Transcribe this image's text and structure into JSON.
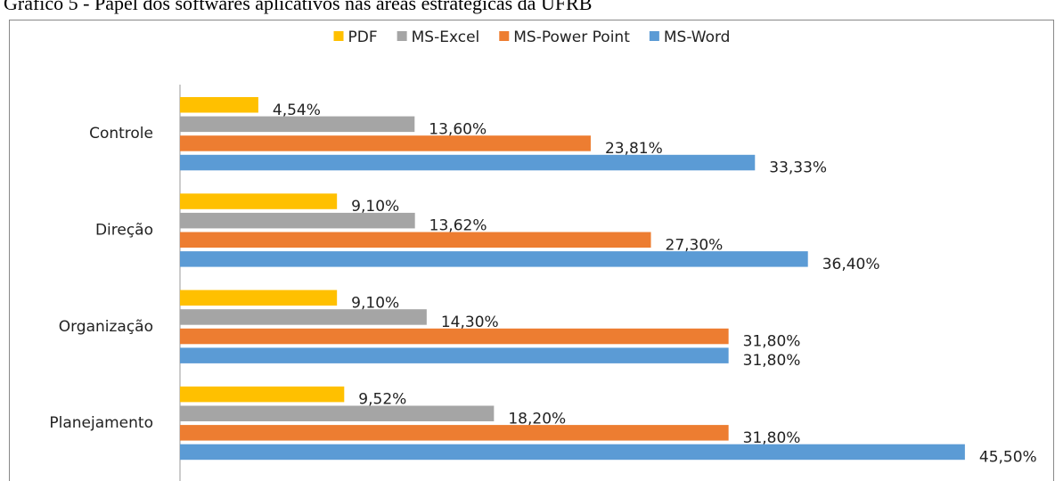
{
  "chart_data": {
    "type": "bar",
    "orientation": "horizontal",
    "title": "Gráfico 5 - Papel dos softwares aplicativos nas áreas estratégicas da UFRB",
    "categories": [
      "Controle",
      "Direção",
      "Organização",
      "Planejamento"
    ],
    "series": [
      {
        "name": "PDF",
        "color": "#ffc000",
        "values": [
          4.54,
          9.1,
          9.1,
          9.52
        ],
        "value_labels": [
          "4,54%",
          "9,10%",
          "9,10%",
          "9,52%"
        ]
      },
      {
        "name": "MS-Excel",
        "color": "#a5a5a5",
        "values": [
          13.6,
          13.62,
          14.3,
          18.2
        ],
        "value_labels": [
          "13,60%",
          "13,62%",
          "14,30%",
          "18,20%"
        ]
      },
      {
        "name": "MS-Power Point",
        "color": "#ed7d31",
        "values": [
          23.81,
          27.3,
          31.8,
          31.8
        ],
        "value_labels": [
          "23,81%",
          "27,30%",
          "31,80%",
          "31,80%"
        ]
      },
      {
        "name": "MS-Word",
        "color": "#5b9bd5",
        "values": [
          33.33,
          36.4,
          31.8,
          45.5
        ],
        "value_labels": [
          "33,33%",
          "36,40%",
          "31,80%",
          "45,50%"
        ]
      }
    ],
    "legend": "top"
  }
}
